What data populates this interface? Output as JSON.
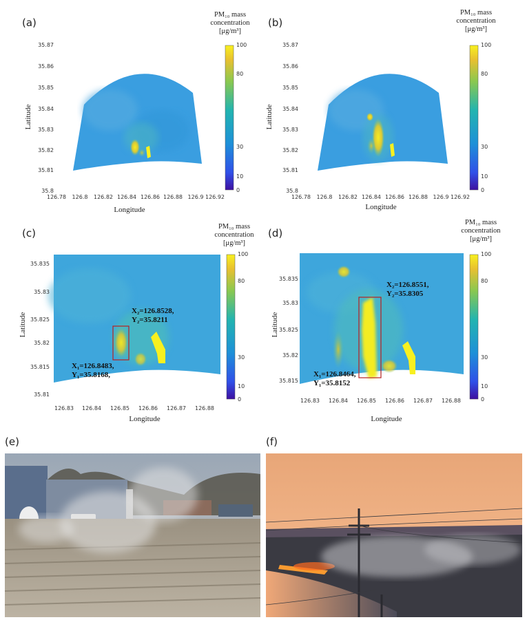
{
  "panels": {
    "a": {
      "label": "(a)"
    },
    "b": {
      "label": "(b)"
    },
    "c": {
      "label": "(c)",
      "annotation_1": [
        "X₁=126.8483,",
        "Y₁=35.8168,"
      ],
      "annotation_2": [
        "X₂=126.8528,",
        "Y₂=35.8211"
      ]
    },
    "d": {
      "label": "(d)",
      "annotation_1": [
        "X₁=126.8464,",
        "Y₁=35.8152"
      ],
      "annotation_2": [
        "X₂=126.8551,",
        "Y₂=35.8305"
      ]
    },
    "e": {
      "label": "(e)"
    },
    "f": {
      "label": "(f)"
    }
  },
  "colorbar": {
    "title_line1": "PM₁₀ mass",
    "title_line2": "concentration",
    "title_line3": "[μg/m³]",
    "ticks": [
      "0",
      "10",
      "30",
      "80",
      "100"
    ]
  },
  "chart_data": [
    {
      "type": "heatmap",
      "panel": "a",
      "xlabel": "Longitude",
      "ylabel": "Latitude",
      "xticks": [
        "126.78",
        "126.8",
        "126.82",
        "126.84",
        "126.86",
        "126.88",
        "126.9",
        "126.92"
      ],
      "yticks": [
        "35.8",
        "35.81",
        "35.82",
        "35.83",
        "35.84",
        "35.85",
        "35.86",
        "35.87"
      ],
      "xlim": [
        126.78,
        126.92
      ],
      "ylim": [
        35.8,
        35.87
      ]
    },
    {
      "type": "heatmap",
      "panel": "b",
      "xlabel": "Longitude",
      "ylabel": "Latitude",
      "xticks": [
        "126.78",
        "126.8",
        "126.82",
        "126.84",
        "126.86",
        "126.88",
        "126.9",
        "126.92"
      ],
      "yticks": [
        "35.8",
        "35.81",
        "35.82",
        "35.83",
        "35.84",
        "35.85",
        "35.86",
        "35.87"
      ],
      "xlim": [
        126.78,
        126.92
      ],
      "ylim": [
        35.8,
        35.87
      ]
    },
    {
      "type": "heatmap",
      "panel": "c",
      "xlabel": "Longitude",
      "ylabel": "Latitude",
      "xticks": [
        "126.83",
        "126.84",
        "126.85",
        "126.86",
        "126.87",
        "126.88"
      ],
      "yticks": [
        "35.81",
        "35.815",
        "35.82",
        "35.825",
        "35.83",
        "35.835"
      ],
      "xlim": [
        126.826,
        126.886
      ],
      "ylim": [
        35.808,
        35.839
      ]
    },
    {
      "type": "heatmap",
      "panel": "d",
      "xlabel": "Longitude",
      "ylabel": "Latitude",
      "xticks": [
        "126.83",
        "126.84",
        "126.85",
        "126.86",
        "126.87",
        "126.88"
      ],
      "yticks": [
        "35.815",
        "35.82",
        "35.825",
        "35.83",
        "35.835"
      ],
      "xlim": [
        126.826,
        126.885
      ],
      "ylim": [
        35.812,
        35.8395
      ]
    }
  ]
}
